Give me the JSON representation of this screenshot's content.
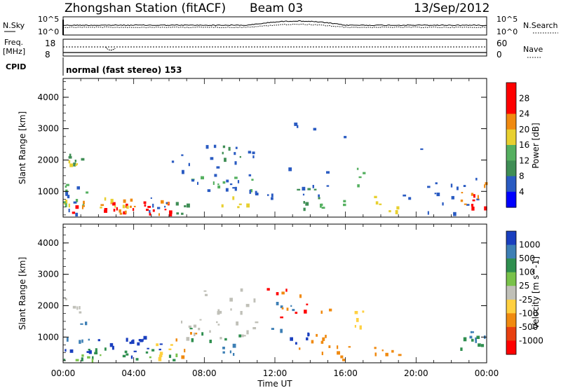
{
  "header": {
    "station": "Zhongshan Station (fitACF)",
    "beam": "Beam 03",
    "date": "13/Sep/2012"
  },
  "top_panels": {
    "nsky_label": "N.Sky",
    "nsearch_label": "N.Search",
    "freq_label_line1": "Freq.",
    "freq_label_line2": "[MHz]",
    "nave_label": "Nave",
    "cpid_label": "CPID",
    "cpid_text": "normal (fast stereo) 153",
    "nsky_ticks": [
      "10^5",
      "10^0"
    ],
    "nsearch_ticks": [
      "10^5",
      "10^0"
    ],
    "freq_ticks": [
      "18",
      "8"
    ],
    "nave_ticks": [
      "60",
      "0"
    ]
  },
  "chart_data": [
    {
      "type": "heatmap",
      "quantity": "Power",
      "ylabel": "Slant Range [km]",
      "yticks": [
        1000,
        2000,
        3000,
        4000
      ],
      "ylim": [
        180,
        4600
      ],
      "xlim_hours": [
        0,
        24
      ],
      "colorbar_label": "Power [dB]",
      "colorbar_ticks": [
        "4",
        "8",
        "12",
        "16",
        "20",
        "24",
        "28"
      ],
      "colorbar_colors": [
        "#0000ff",
        "#2a5bc2",
        "#3f8e55",
        "#55b060",
        "#e8d030",
        "#f08a10",
        "#ff0000"
      ]
    },
    {
      "type": "heatmap",
      "quantity": "Velocity",
      "ylabel": "Slant Range [km]",
      "yticks": [
        1000,
        2000,
        3000,
        4000
      ],
      "ylim": [
        180,
        4600
      ],
      "xlim_hours": [
        0,
        24
      ],
      "colorbar_label": "Velocity [m s^-1]",
      "colorbar_ticks": [
        "1000",
        "500",
        "100",
        "25",
        "-25",
        "-100",
        "-500",
        "-1000"
      ],
      "colorbar_colors": [
        "#1a3fbf",
        "#3d7fb5",
        "#2f8f4f",
        "#79c24a",
        "#c0c0b8",
        "#ffd040",
        "#f08a10",
        "#e84010",
        "#ff0000"
      ]
    }
  ],
  "xaxis": {
    "ticks": [
      "00:00",
      "04:00",
      "08:00",
      "12:00",
      "16:00",
      "20:00",
      "00:00"
    ],
    "label": "Time UT"
  },
  "colors": {
    "power_main": "#e84010",
    "power_mid": "#55b060",
    "power_low": "#2a5bc2",
    "vel_neg_small": "#c0c0b8",
    "vel_pos": "#2f8f4f",
    "vel_blue": "#1a3fbf",
    "vel_orange": "#f08a10"
  }
}
